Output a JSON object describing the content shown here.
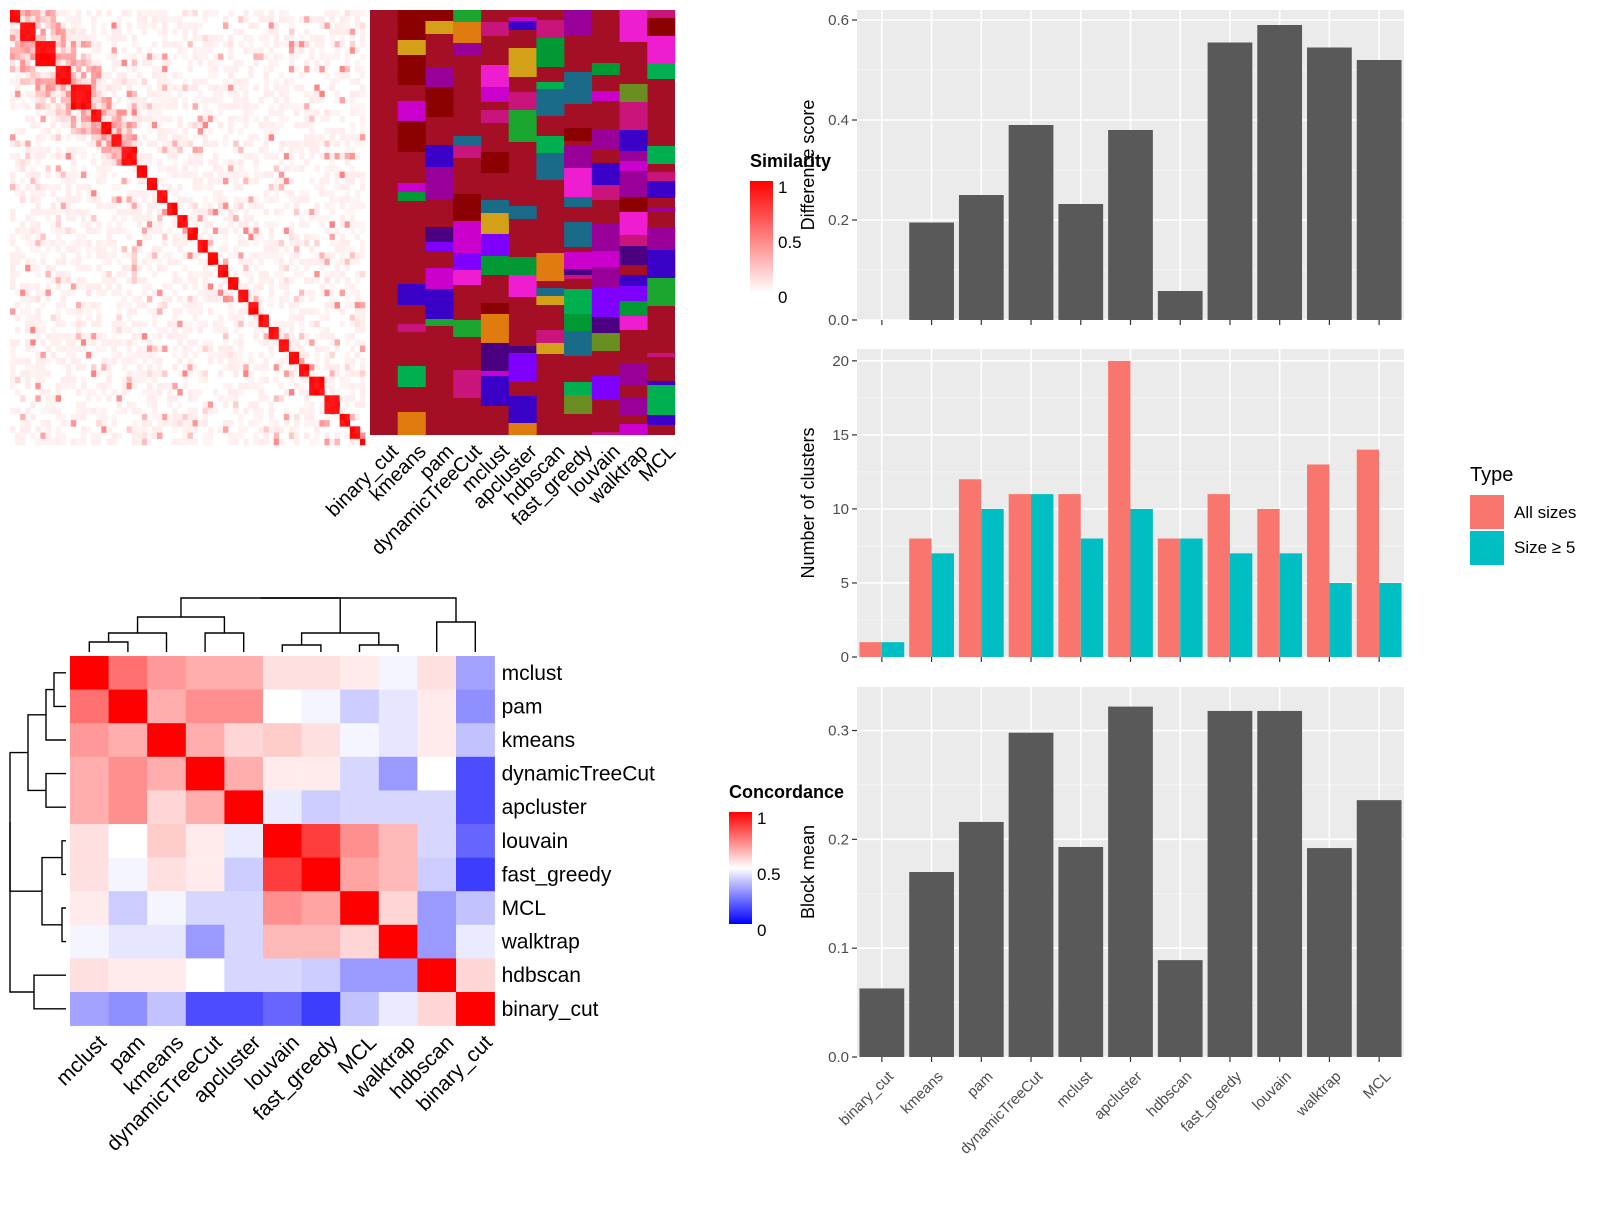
{
  "methods": [
    "binary_cut",
    "kmeans",
    "pam",
    "dynamicTreeCut",
    "mclust",
    "apcluster",
    "hdbscan",
    "fast_greedy",
    "louvain",
    "walktrap",
    "MCL"
  ],
  "similarity_heatmap": {
    "legend_title": "Similarity",
    "legend_ticks": [
      "1",
      "0.5",
      "0"
    ],
    "colors": {
      "low": "#ffffff",
      "high": "#ff0000"
    }
  },
  "partition_palette": [
    "#a50f26",
    "#8b0000",
    "#d4a017",
    "#c9147c",
    "#1aa52e",
    "#7f00ff",
    "#3b00c8",
    "#e07b10",
    "#00b050",
    "#1a6b8a",
    "#6b8e23",
    "#ee1dcf",
    "#4b0082",
    "#009933",
    "#cc00cc",
    "#990099"
  ],
  "concordance_heatmap": {
    "legend_title": "Concordance",
    "legend_ticks": [
      "1",
      "0.5",
      "0"
    ],
    "order": [
      "mclust",
      "pam",
      "kmeans",
      "dynamicTreeCut",
      "apcluster",
      "louvain",
      "fast_greedy",
      "MCL",
      "walktrap",
      "hdbscan",
      "binary_cut"
    ],
    "colors": {
      "low": "#0000ff",
      "mid": "#ffffff",
      "high": "#ff0000"
    }
  },
  "chart_data": [
    {
      "type": "bar",
      "categories": [
        "binary_cut",
        "kmeans",
        "pam",
        "dynamicTreeCut",
        "mclust",
        "apcluster",
        "hdbscan",
        "fast_greedy",
        "louvain",
        "walktrap",
        "MCL"
      ],
      "values": [
        0.0,
        0.195,
        0.25,
        0.39,
        0.232,
        0.38,
        0.058,
        0.555,
        0.59,
        0.545,
        0.52
      ],
      "ylabel": "Difference score",
      "ylim": [
        0,
        0.62
      ],
      "yticks": [
        "0.0",
        "0.2",
        "0.4",
        "0.6"
      ]
    },
    {
      "type": "bar",
      "categories": [
        "binary_cut",
        "kmeans",
        "pam",
        "dynamicTreeCut",
        "mclust",
        "apcluster",
        "hdbscan",
        "fast_greedy",
        "louvain",
        "walktrap",
        "MCL"
      ],
      "series": [
        {
          "name": "All sizes",
          "values": [
            1,
            8,
            12,
            11,
            11,
            20,
            8,
            11,
            10,
            13,
            14
          ],
          "color": "#f8766d"
        },
        {
          "name": "Size ≥ 5",
          "values": [
            1,
            7,
            10,
            11,
            8,
            10,
            8,
            7,
            7,
            5,
            5
          ],
          "color": "#00bfc4"
        }
      ],
      "ylabel": "Number of clusters",
      "ylim": [
        0,
        20.8
      ],
      "yticks": [
        "0",
        "5",
        "10",
        "15",
        "20"
      ],
      "legend_title": "Type",
      "legend_position": "right"
    },
    {
      "type": "bar",
      "categories": [
        "binary_cut",
        "kmeans",
        "pam",
        "dynamicTreeCut",
        "mclust",
        "apcluster",
        "hdbscan",
        "fast_greedy",
        "louvain",
        "walktrap",
        "MCL"
      ],
      "values": [
        0.063,
        0.17,
        0.216,
        0.298,
        0.193,
        0.322,
        0.089,
        0.318,
        0.318,
        0.192,
        0.236
      ],
      "ylabel": "Block mean",
      "ylim": [
        0,
        0.34
      ],
      "yticks": [
        "0.0",
        "0.1",
        "0.2",
        "0.3"
      ]
    },
    {
      "type": "heatmap",
      "rows": [
        "mclust",
        "pam",
        "kmeans",
        "dynamicTreeCut",
        "apcluster",
        "louvain",
        "fast_greedy",
        "MCL",
        "walktrap",
        "hdbscan",
        "binary_cut"
      ],
      "columns": [
        "mclust",
        "pam",
        "kmeans",
        "dynamicTreeCut",
        "apcluster",
        "louvain",
        "fast_greedy",
        "MCL",
        "walktrap",
        "hdbscan",
        "binary_cut"
      ],
      "values": [
        [
          1.0,
          0.78,
          0.7,
          0.66,
          0.66,
          0.56,
          0.56,
          0.54,
          0.48,
          0.56,
          0.32
        ],
        [
          0.78,
          1.0,
          0.66,
          0.72,
          0.72,
          0.5,
          0.48,
          0.4,
          0.45,
          0.54,
          0.28
        ],
        [
          0.7,
          0.66,
          1.0,
          0.66,
          0.58,
          0.6,
          0.56,
          0.48,
          0.45,
          0.54,
          0.38
        ],
        [
          0.66,
          0.72,
          0.66,
          1.0,
          0.66,
          0.54,
          0.54,
          0.42,
          0.3,
          0.5,
          0.15
        ],
        [
          0.66,
          0.72,
          0.58,
          0.66,
          1.0,
          0.46,
          0.4,
          0.42,
          0.42,
          0.42,
          0.15
        ],
        [
          0.56,
          0.5,
          0.6,
          0.54,
          0.46,
          1.0,
          0.88,
          0.72,
          0.64,
          0.42,
          0.2
        ],
        [
          0.56,
          0.48,
          0.56,
          0.54,
          0.4,
          0.88,
          1.0,
          0.68,
          0.64,
          0.4,
          0.12
        ],
        [
          0.54,
          0.4,
          0.48,
          0.42,
          0.42,
          0.72,
          0.68,
          1.0,
          0.58,
          0.3,
          0.38
        ],
        [
          0.48,
          0.45,
          0.45,
          0.3,
          0.42,
          0.64,
          0.64,
          0.58,
          1.0,
          0.3,
          0.46
        ],
        [
          0.56,
          0.54,
          0.54,
          0.5,
          0.42,
          0.42,
          0.4,
          0.3,
          0.3,
          1.0,
          0.58
        ],
        [
          0.32,
          0.28,
          0.38,
          0.15,
          0.15,
          0.2,
          0.12,
          0.38,
          0.46,
          0.58,
          1.0
        ]
      ],
      "legend_title": "Concordance",
      "scale": [
        0,
        1
      ]
    }
  ]
}
